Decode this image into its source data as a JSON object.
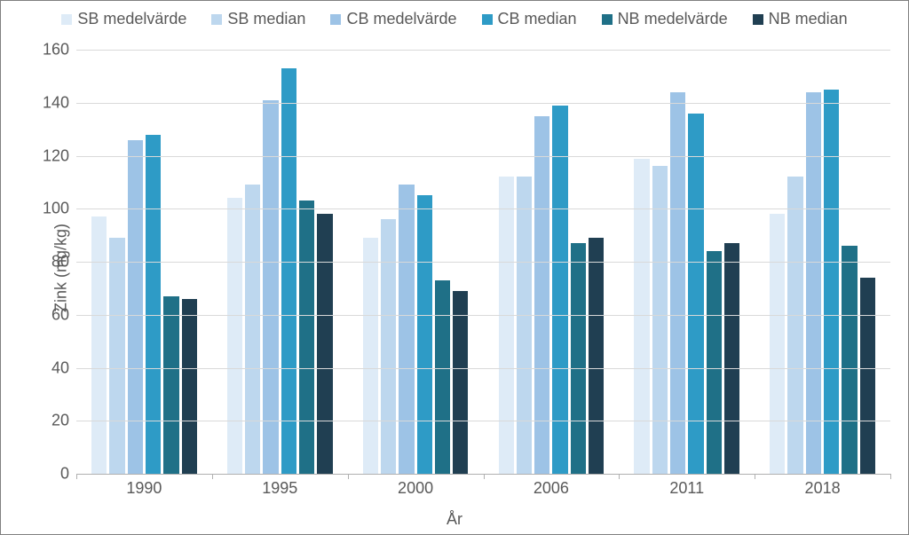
{
  "chart": {
    "type": "bar-grouped",
    "background_color": "#ffffff",
    "border_color": "#808080",
    "grid_color": "#d9d9d9",
    "baseline_color": "#b0b0b0",
    "text_color": "#595959",
    "font_family": "Arial",
    "label_fontsize": 18,
    "title_fontsize": 18,
    "x_axis_title": "År",
    "y_axis_title": "Zink (mg/kg)",
    "ylim": [
      0,
      160
    ],
    "ytick_step": 20,
    "yticks": [
      0,
      20,
      40,
      60,
      80,
      100,
      120,
      140,
      160
    ],
    "categories": [
      "1990",
      "1995",
      "2000",
      "2006",
      "2011",
      "2018"
    ],
    "series": [
      {
        "label": "SB medelvärde",
        "color": "#deebf7",
        "values": [
          97,
          104,
          89,
          112,
          119,
          98
        ]
      },
      {
        "label": "SB median",
        "color": "#bdd7ee",
        "values": [
          89,
          109,
          96,
          112,
          116,
          112
        ]
      },
      {
        "label": "CB medelvärde",
        "color": "#9dc3e6",
        "values": [
          126,
          141,
          109,
          135,
          144,
          144
        ]
      },
      {
        "label": "CB median",
        "color": "#2e9bc6",
        "values": [
          128,
          153,
          105,
          139,
          136,
          145
        ]
      },
      {
        "label": "NB medelvärde",
        "color": "#1f7087",
        "values": [
          67,
          103,
          73,
          87,
          84,
          86
        ]
      },
      {
        "label": "NB median",
        "color": "#203f52",
        "values": [
          66,
          98,
          69,
          89,
          87,
          74
        ]
      }
    ],
    "bar_gap_within_group": 3,
    "group_gap": 34
  }
}
